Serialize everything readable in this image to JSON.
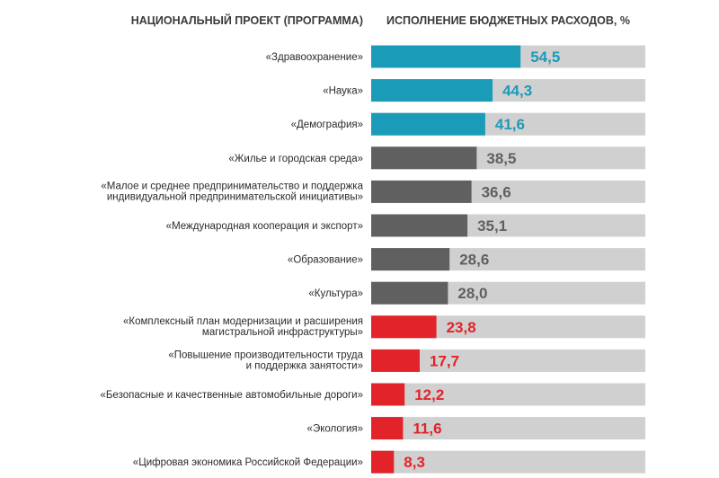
{
  "headers": {
    "left": "НАЦИОНАЛЬНЫЙ ПРОЕКТ (ПРОГРАММА)",
    "right": "ИСПОЛНЕНИЕ БЮДЖЕТНЫХ РАСХОДОВ, %"
  },
  "colors": {
    "teal": "#1a9bb8",
    "gray": "#606060",
    "red": "#e2232a",
    "track": "#d0d0d0"
  },
  "chart_data": {
    "type": "bar",
    "orientation": "horizontal",
    "xlim": [
      0,
      100
    ],
    "categories": [
      [
        "«Здравоохранение»"
      ],
      [
        "«Наука»"
      ],
      [
        "«Демография»"
      ],
      [
        "«Жилье и городская среда»"
      ],
      [
        "«Малое и среднее предпринимательство и поддержка",
        "индивидуальной предпринимательской инициативы»"
      ],
      [
        "«Международная кооперация и экспорт»"
      ],
      [
        "«Образование»"
      ],
      [
        "«Культура»"
      ],
      [
        "«Комплексный план модернизации и расширения",
        "магистральной инфраструктуры»"
      ],
      [
        "«Повышение производительности труда",
        "и поддержка занятости»"
      ],
      [
        "«Безопасные и качественные автомобильные дороги»"
      ],
      [
        "«Экология»"
      ],
      [
        "«Цифровая экономика Российской Федерации»"
      ]
    ],
    "values": [
      54.5,
      44.3,
      41.6,
      38.5,
      36.6,
      35.1,
      28.6,
      28.0,
      23.8,
      17.7,
      12.2,
      11.6,
      8.3
    ],
    "value_labels": [
      "54,5",
      "44,3",
      "41,6",
      "38,5",
      "36,6",
      "35,1",
      "28,6",
      "28,0",
      "23,8",
      "17,7",
      "12,2",
      "11,6",
      "8,3"
    ],
    "bar_colors": [
      "teal",
      "teal",
      "teal",
      "gray",
      "gray",
      "gray",
      "gray",
      "gray",
      "red",
      "red",
      "red",
      "red",
      "red"
    ],
    "label_colors": [
      "teal",
      "teal",
      "teal",
      "gray",
      "gray",
      "gray",
      "gray",
      "gray",
      "red",
      "red",
      "red",
      "red",
      "red"
    ]
  }
}
